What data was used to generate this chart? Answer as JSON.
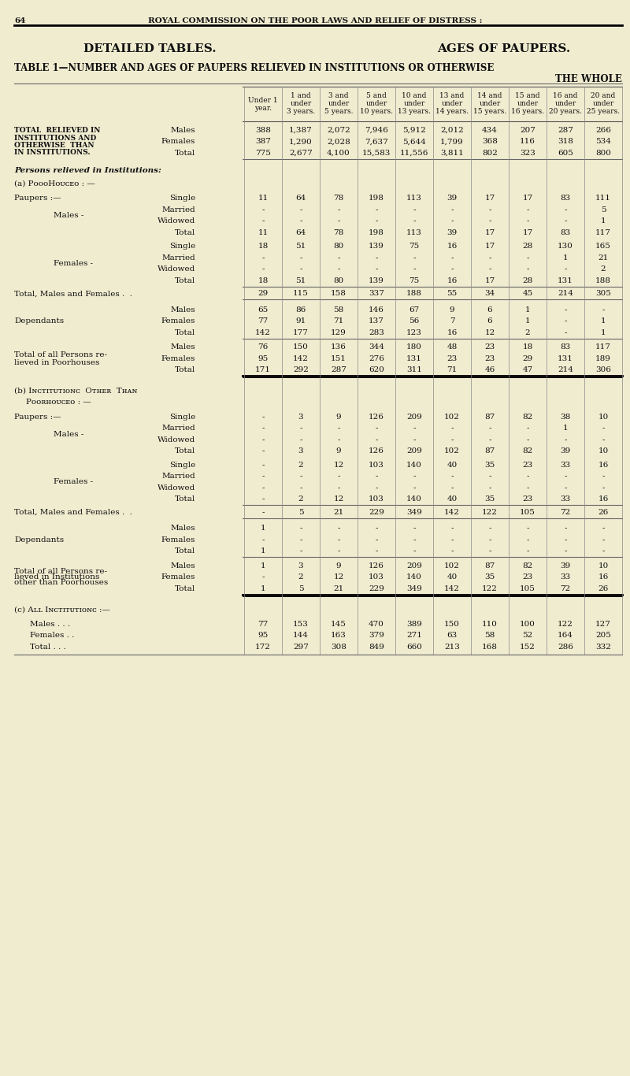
{
  "bg_color": "#f0ecd0",
  "page_num": "64",
  "header_line": "ROYAL COMMISSION ON THE POOR LAWS AND RELIEF OF DISTRESS :",
  "title_left": "DETAILED TABLES.",
  "title_right": "AGES OF PAUPERS.",
  "col_headers": [
    "Under 1\nyear.",
    "1 and\nunder\n3 years.",
    "3 and\nunder\n5 years.",
    "5 and\nunder\n10 years.",
    "10 and\nunder\n13 years.",
    "13 and\nunder\n14 years.",
    "14 and\nunder\n15 years.",
    "15 and\nunder\n16 years.",
    "16 and\nunder\n20 years.",
    "20 and\nunder\n25 years."
  ],
  "total_section": {
    "label": "TOTAL  RELIEVED IN\nINSTITUTIONS AND\nOTHERWISE  THAN\nIN INSTITUTIONS.",
    "rows": [
      {
        "label": "Males",
        "values": [
          "388",
          "1,387",
          "2,072",
          "7,946",
          "5,912",
          "2,012",
          "434",
          "207",
          "287",
          "266"
        ]
      },
      {
        "label": "Females",
        "values": [
          "387",
          "1,290",
          "2,028",
          "7,637",
          "5,644",
          "1,799",
          "368",
          "116",
          "318",
          "534"
        ]
      },
      {
        "label": "Total",
        "values": [
          "775",
          "2,677",
          "4,100",
          "15,583",
          "11,556",
          "3,811",
          "802",
          "323",
          "605",
          "800"
        ]
      }
    ]
  },
  "poorhouses_males": {
    "rows": [
      {
        "label": "Single",
        "values": [
          "11",
          "64",
          "78",
          "198",
          "113",
          "39",
          "17",
          "17",
          "83",
          "111"
        ]
      },
      {
        "label": "Married",
        "values": [
          "-",
          "-",
          "-",
          "-",
          "-",
          "-",
          "-",
          "-",
          "-",
          "5"
        ]
      },
      {
        "label": "Widowed",
        "values": [
          "-",
          "-",
          "-",
          "-",
          "-",
          "-",
          "-",
          "-",
          "-",
          "1"
        ]
      },
      {
        "label": "Total",
        "values": [
          "11",
          "64",
          "78",
          "198",
          "113",
          "39",
          "17",
          "17",
          "83",
          "117"
        ]
      }
    ]
  },
  "poorhouses_females": {
    "rows": [
      {
        "label": "Single",
        "values": [
          "18",
          "51",
          "80",
          "139",
          "75",
          "16",
          "17",
          "28",
          "130",
          "165"
        ]
      },
      {
        "label": "Married",
        "values": [
          "-",
          "-",
          "-",
          "-",
          "-",
          "-",
          "-",
          "-",
          "1",
          "21"
        ]
      },
      {
        "label": "Widowed",
        "values": [
          "-",
          "-",
          "-",
          "-",
          "-",
          "-",
          "-",
          "-",
          "-",
          "2"
        ]
      },
      {
        "label": "Total",
        "values": [
          "18",
          "51",
          "80",
          "139",
          "75",
          "16",
          "17",
          "28",
          "131",
          "188"
        ]
      }
    ]
  },
  "total_mf_poorhouses": [
    "29",
    "115",
    "158",
    "337",
    "188",
    "55",
    "34",
    "45",
    "214",
    "305"
  ],
  "dependants_poorhouses": {
    "rows": [
      {
        "label": "Males",
        "values": [
          "65",
          "86",
          "58",
          "146",
          "67",
          "9",
          "6",
          "1",
          "-",
          "-"
        ]
      },
      {
        "label": "Females",
        "values": [
          "77",
          "91",
          "71",
          "137",
          "56",
          "7",
          "6",
          "1",
          "-",
          "1"
        ]
      },
      {
        "label": "Total",
        "values": [
          "142",
          "177",
          "129",
          "283",
          "123",
          "16",
          "12",
          "2",
          "-",
          "1"
        ]
      }
    ]
  },
  "total_all_poorhouses": {
    "rows": [
      {
        "label": "Males",
        "values": [
          "76",
          "150",
          "136",
          "344",
          "180",
          "48",
          "23",
          "18",
          "83",
          "117"
        ]
      },
      {
        "label": "Females",
        "values": [
          "95",
          "142",
          "151",
          "276",
          "131",
          "23",
          "23",
          "29",
          "131",
          "189"
        ]
      },
      {
        "label": "Total",
        "values": [
          "171",
          "292",
          "287",
          "620",
          "311",
          "71",
          "46",
          "47",
          "214",
          "306"
        ]
      }
    ]
  },
  "other_males": {
    "rows": [
      {
        "label": "Single",
        "values": [
          "-",
          "3",
          "9",
          "126",
          "209",
          "102",
          "87",
          "82",
          "38",
          "10"
        ]
      },
      {
        "label": "Married",
        "values": [
          "-",
          "-",
          "-",
          "-",
          "-",
          "-",
          "-",
          "-",
          "1",
          "-"
        ]
      },
      {
        "label": "Widowed",
        "values": [
          "-",
          "-",
          "-",
          "-",
          "-",
          "-",
          "-",
          "-",
          "-",
          "-"
        ]
      },
      {
        "label": "Total",
        "values": [
          "-",
          "3",
          "9",
          "126",
          "209",
          "102",
          "87",
          "82",
          "39",
          "10"
        ]
      }
    ]
  },
  "other_females": {
    "rows": [
      {
        "label": "Single",
        "values": [
          "-",
          "2",
          "12",
          "103",
          "140",
          "40",
          "35",
          "23",
          "33",
          "16"
        ]
      },
      {
        "label": "Married",
        "values": [
          "-",
          "-",
          "-",
          "-",
          "-",
          "-",
          "-",
          "-",
          "-",
          "-"
        ]
      },
      {
        "label": "Widowed",
        "values": [
          "-",
          "-",
          "-",
          "-",
          "-",
          "-",
          "-",
          "-",
          "-",
          "-"
        ]
      },
      {
        "label": "Total",
        "values": [
          "-",
          "2",
          "12",
          "103",
          "140",
          "40",
          "35",
          "23",
          "33",
          "16"
        ]
      }
    ]
  },
  "total_mf_other": [
    "-",
    "5",
    "21",
    "229",
    "349",
    "142",
    "122",
    "105",
    "72",
    "26"
  ],
  "dependants_other": {
    "rows": [
      {
        "label": "Males",
        "values": [
          "1",
          "-",
          "-",
          "-",
          "-",
          "-",
          "-",
          "-",
          "-",
          "-"
        ]
      },
      {
        "label": "Females",
        "values": [
          "-",
          "-",
          "-",
          "-",
          "-",
          "-",
          "-",
          "-",
          "-",
          "-"
        ]
      },
      {
        "label": "Total",
        "values": [
          "1",
          "-",
          "-",
          "-",
          "-",
          "-",
          "-",
          "-",
          "-",
          "-"
        ]
      }
    ]
  },
  "total_all_other": {
    "rows": [
      {
        "label": "Males",
        "values": [
          "1",
          "3",
          "9",
          "126",
          "209",
          "102",
          "87",
          "82",
          "39",
          "10"
        ]
      },
      {
        "label": "Females",
        "values": [
          "-",
          "2",
          "12",
          "103",
          "140",
          "40",
          "35",
          "23",
          "33",
          "16"
        ]
      },
      {
        "label": "Total",
        "values": [
          "1",
          "5",
          "21",
          "229",
          "349",
          "142",
          "122",
          "105",
          "72",
          "26"
        ]
      }
    ]
  },
  "all_institutions": {
    "rows": [
      {
        "label": "Males . . .",
        "values": [
          "77",
          "153",
          "145",
          "470",
          "389",
          "150",
          "110",
          "100",
          "122",
          "127"
        ]
      },
      {
        "label": "Females . .",
        "values": [
          "95",
          "144",
          "163",
          "379",
          "271",
          "63",
          "58",
          "52",
          "164",
          "205"
        ]
      },
      {
        "label": "Total . . .",
        "values": [
          "172",
          "297",
          "308",
          "849",
          "660",
          "213",
          "168",
          "152",
          "286",
          "332"
        ]
      }
    ]
  }
}
